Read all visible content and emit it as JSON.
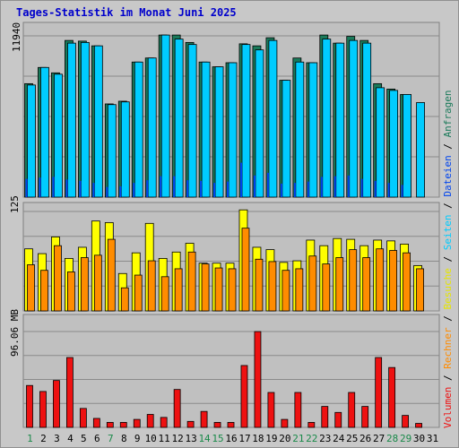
{
  "chart_data": {
    "type": "bar",
    "title": "Tages-Statistik im Monat Juni 2025",
    "x": [
      "1",
      "2",
      "3",
      "4",
      "5",
      "6",
      "7",
      "8",
      "9",
      "10",
      "11",
      "12",
      "13",
      "14",
      "15",
      "16",
      "17",
      "18",
      "19",
      "20",
      "21",
      "22",
      "23",
      "24",
      "25",
      "26",
      "27",
      "28",
      "29",
      "30",
      "31"
    ],
    "weekend_days": [
      1,
      7,
      14,
      15,
      21,
      22,
      28,
      29
    ],
    "legend": [
      "Volumen",
      "Rechner",
      "Besuche",
      "Seiten",
      "Dateien",
      "Anfragen"
    ],
    "panels": [
      {
        "name": "requests",
        "max_label": "11940",
        "ymax": 11940,
        "series": [
          {
            "name": "Anfragen",
            "color": "#1a7a5a",
            "values": [
              8400,
              9600,
              9200,
              11600,
              11550,
              11200,
              6900,
              7100,
              10000,
              10300,
              12000,
              12000,
              11450,
              10000,
              9650,
              9950,
              11350,
              11200,
              11800,
              8650,
              10300,
              9950,
              12000,
              11400,
              11900,
              11600,
              8400,
              8000,
              7600,
              null,
              null
            ]
          },
          {
            "name": "Seiten",
            "color": "#00ccff",
            "values": [
              8300,
              9600,
              9100,
              11400,
              11450,
              11200,
              6850,
              7050,
              10000,
              10300,
              12000,
              11700,
              11300,
              10000,
              9650,
              9950,
              11300,
              10900,
              11600,
              8650,
              10000,
              9950,
              11700,
              11400,
              11600,
              11400,
              8100,
              7900,
              7600,
              7000,
              null
            ]
          },
          {
            "name": "Dateien",
            "color": "#0044ee",
            "values": [
              1350,
              1450,
              1500,
              1300,
              1200,
              1050,
              750,
              800,
              1050,
              1250,
              1550,
              1550,
              1250,
              1200,
              1050,
              1150,
              2550,
              1600,
              1800,
              1000,
              1050,
              1150,
              1500,
              1550,
              1600,
              1350,
              1200,
              1050,
              900,
              null,
              null
            ]
          }
        ]
      },
      {
        "name": "visits",
        "max_label": "125",
        "ymax": 125,
        "series": [
          {
            "name": "Besuche",
            "color": "#ffff00",
            "values": [
              78,
              72,
              93,
              66,
              80,
              113,
              111,
              47,
              73,
              110,
              66,
              74,
              85,
              60,
              60,
              60,
              127,
              80,
              77,
              61,
              63,
              89,
              82,
              91,
              90,
              82,
              89,
              88,
              84,
              57,
              null
            ]
          },
          {
            "name": "Rechner",
            "color": "#ff8c00",
            "values": [
              58,
              51,
              82,
              49,
              67,
              70,
              90,
              29,
              45,
              63,
              43,
              53,
              74,
              59,
              54,
              53,
              104,
              65,
              62,
              51,
              53,
              69,
              59,
              67,
              77,
              67,
              78,
              76,
              73,
              53,
              null
            ]
          }
        ]
      },
      {
        "name": "volume",
        "max_label": "96.06 MB",
        "ymax": 96.06,
        "series": [
          {
            "name": "Volumen",
            "color": "#ee1111",
            "values": [
              42,
              36,
              47,
              70,
              19,
              9,
              5,
              5,
              8,
              13,
              10,
              38,
              6,
              16,
              5,
              5,
              62,
              96,
              35,
              8,
              35,
              5,
              21,
              15,
              35,
              21,
              70,
              60,
              12,
              4,
              null
            ]
          }
        ]
      }
    ]
  }
}
